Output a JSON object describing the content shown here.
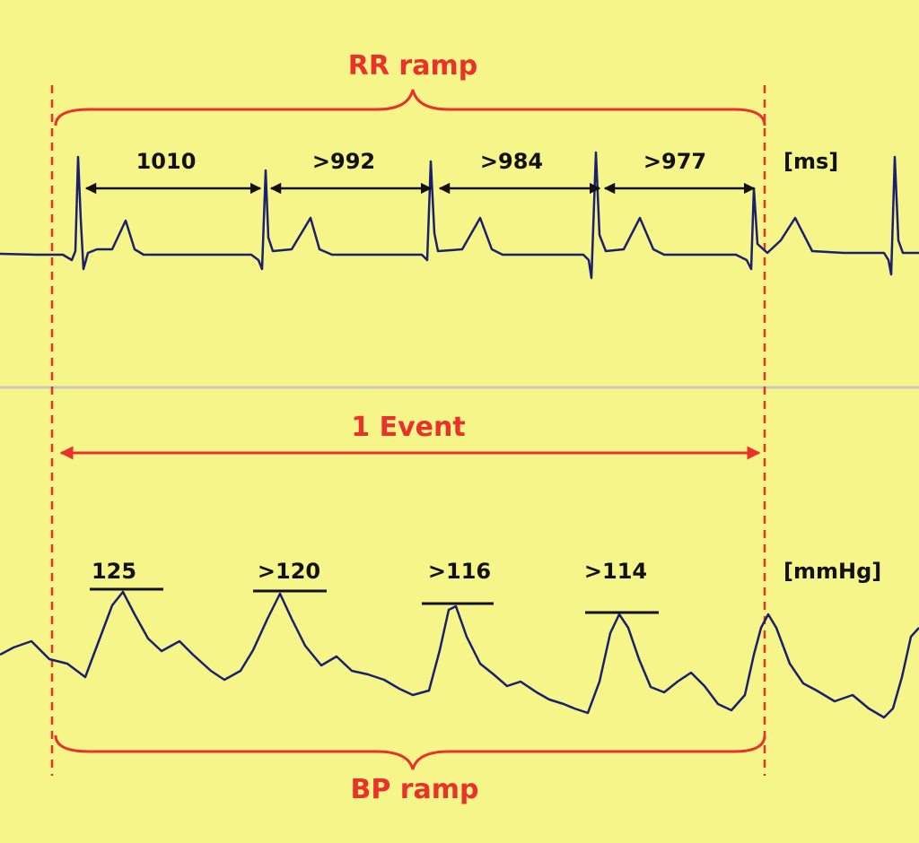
{
  "rr": {
    "title": "RR ramp",
    "unit": "[ms]",
    "intervals": [
      "1010",
      ">992",
      ">984",
      ">977"
    ]
  },
  "bp": {
    "title": "BP ramp",
    "unit": "[mmHg]",
    "peaks": [
      "125",
      ">120",
      ">116",
      ">114"
    ]
  },
  "event": {
    "label": "1 Event"
  },
  "colors": {
    "background": "#f6f58a",
    "annotation": "#e8322a",
    "trace": "#1a1f6e",
    "divider": "#c8c8c0"
  }
}
